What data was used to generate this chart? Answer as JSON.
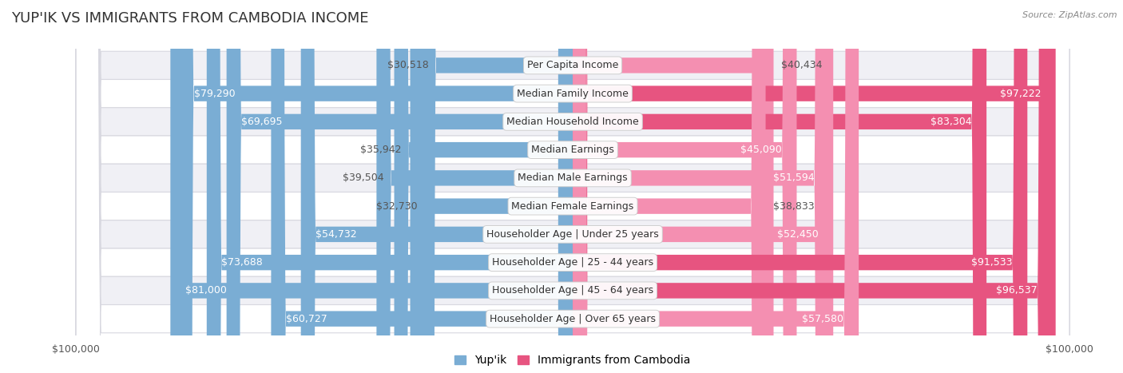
{
  "title": "YUP'IK VS IMMIGRANTS FROM CAMBODIA INCOME",
  "source": "Source: ZipAtlas.com",
  "categories": [
    "Per Capita Income",
    "Median Family Income",
    "Median Household Income",
    "Median Earnings",
    "Median Male Earnings",
    "Median Female Earnings",
    "Householder Age | Under 25 years",
    "Householder Age | 25 - 44 years",
    "Householder Age | 45 - 64 years",
    "Householder Age | Over 65 years"
  ],
  "yupik_values": [
    30518,
    79290,
    69695,
    35942,
    39504,
    32730,
    54732,
    73688,
    81000,
    60727
  ],
  "cambodia_values": [
    40434,
    97222,
    83304,
    45090,
    51594,
    38833,
    52450,
    91533,
    96537,
    57580
  ],
  "yupik_labels": [
    "$30,518",
    "$79,290",
    "$69,695",
    "$35,942",
    "$39,504",
    "$32,730",
    "$54,732",
    "$73,688",
    "$81,000",
    "$60,727"
  ],
  "cambodia_labels": [
    "$40,434",
    "$97,222",
    "$83,304",
    "$45,090",
    "$51,594",
    "$38,833",
    "$52,450",
    "$91,533",
    "$96,537",
    "$57,580"
  ],
  "yupik_color": "#7aadd4",
  "cambodia_color": "#f48fb1",
  "cambodia_color_dark": "#e75480",
  "max_value": 100000,
  "background_color": "#ffffff",
  "row_colors": [
    "#f0f0f5",
    "#ffffff",
    "#f0f0f5",
    "#ffffff",
    "#f0f0f5",
    "#ffffff",
    "#f0f0f5",
    "#ffffff",
    "#f0f0f5",
    "#ffffff"
  ],
  "bar_height": 0.55,
  "title_fontsize": 13,
  "label_fontsize": 9,
  "axis_label_fontsize": 9,
  "legend_fontsize": 10,
  "inside_label_threshold": 45000
}
